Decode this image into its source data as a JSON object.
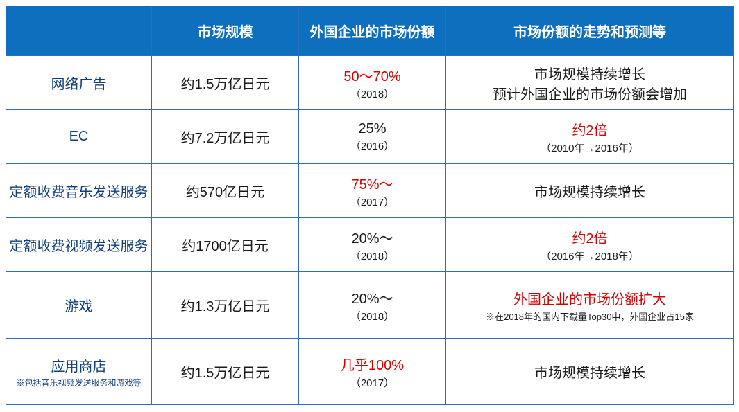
{
  "header": {
    "blank": "",
    "size": "市场规模",
    "share": "外国企业的市场份额",
    "trend": "市场份额的走势和预测等"
  },
  "rows": [
    {
      "label": "网络广告",
      "labelNote": "",
      "size": "约1.5万亿日元",
      "shareMain": "50～70%",
      "shareHighlight": true,
      "shareSub": "（2018）",
      "trendMain": "市场规模持续增长",
      "trendMain2": "预计外国企业的市场份额会增加",
      "trendHighlight": false,
      "trendSub": ""
    },
    {
      "label": "EC",
      "labelNote": "",
      "size": "约7.2万亿日元",
      "shareMain": "25%",
      "shareHighlight": false,
      "shareSub": "（2016）",
      "trendMain": "约2倍",
      "trendHighlight": true,
      "trendSub": "（2010年→2016年）"
    },
    {
      "label": "定额收费音乐发送服务",
      "labelNote": "",
      "size": "约570亿日元",
      "shareMain": "75%～",
      "shareHighlight": true,
      "shareSub": "（2017）",
      "trendMain": "市场规模持续增长",
      "trendHighlight": false,
      "trendSub": ""
    },
    {
      "label": "定额收费视频发送服务",
      "labelNote": "",
      "size": "约1700亿日元",
      "shareMain": "20%～",
      "shareHighlight": false,
      "shareSub": "（2018）",
      "trendMain": "约2倍",
      "trendHighlight": true,
      "trendSub": "（2016年→2018年）"
    },
    {
      "label": "游戏",
      "labelNote": "",
      "size": "约1.3万亿日元",
      "shareMain": "20%～",
      "shareHighlight": false,
      "shareSub": "（2018）",
      "trendMain": "外国企业的市场份额扩大",
      "trendHighlight": true,
      "trendSub": "※在2018年的国内下载量Top30中，外国企业占15家",
      "tall": true
    },
    {
      "label": "应用商店",
      "labelNote": "※包括音乐视频发送服务和游戏等",
      "size": "约1.5万亿日元",
      "shareMain": "几乎100%",
      "shareHighlight": true,
      "shareSub": "（2017）",
      "trendMain": "市场规模持续增长",
      "trendHighlight": false,
      "trendSub": "",
      "tall": true
    }
  ]
}
